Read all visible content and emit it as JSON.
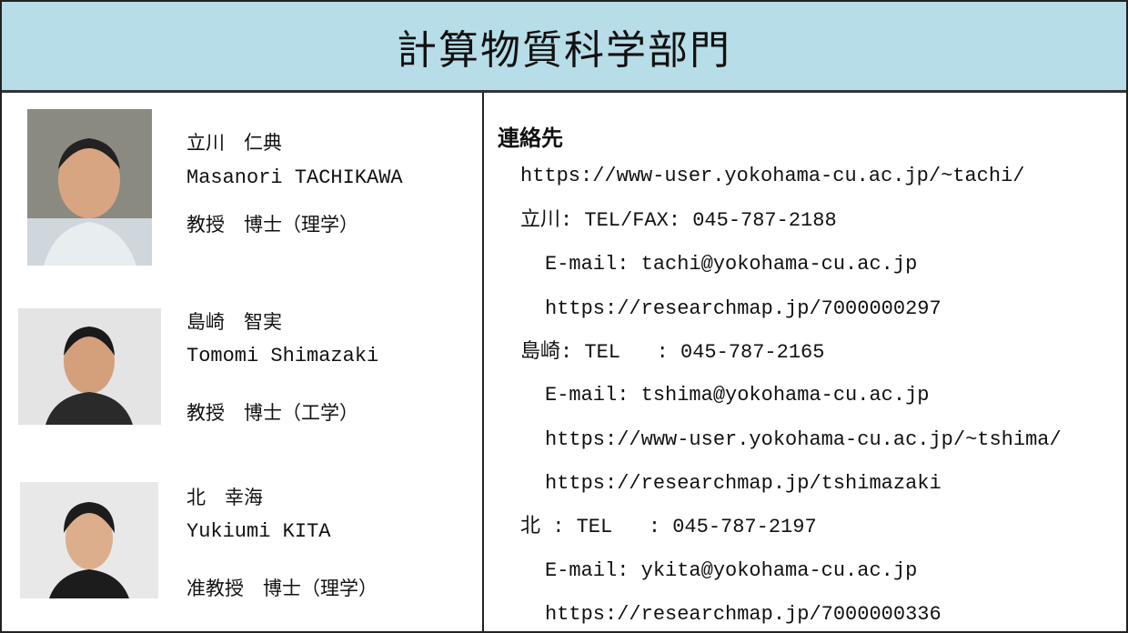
{
  "header": {
    "title": "計算物質科学部門"
  },
  "members": [
    {
      "name_ja": "立川　仁典",
      "name_en": "Masanori TACHIKAWA",
      "position": "教授　博士（理学）"
    },
    {
      "name_ja": "島崎　智実",
      "name_en": "Tomomi Shimazaki",
      "position": "教授　博士（工学）"
    },
    {
      "name_ja": "北　幸海",
      "name_en": "Yukiumi KITA",
      "position": "准教授　博士（理学）"
    }
  ],
  "contact": {
    "heading": "連絡先",
    "lines": [
      "https://www-user.yokohama-cu.ac.jp/~tachi/",
      "立川: TEL/FAX: 045-787-2188",
      "E-mail: tachi@yokohama-cu.ac.jp",
      "https://researchmap.jp/7000000297",
      "島崎: TEL   : 045-787-2165",
      "E-mail: tshima@yokohama-cu.ac.jp",
      "https://www-user.yokohama-cu.ac.jp/~tshima/",
      "https://researchmap.jp/tshimazaki",
      "北 : TEL   : 045-787-2197",
      "E-mail: ykita@yokohama-cu.ac.jp",
      "https://researchmap.jp/7000000336"
    ]
  }
}
